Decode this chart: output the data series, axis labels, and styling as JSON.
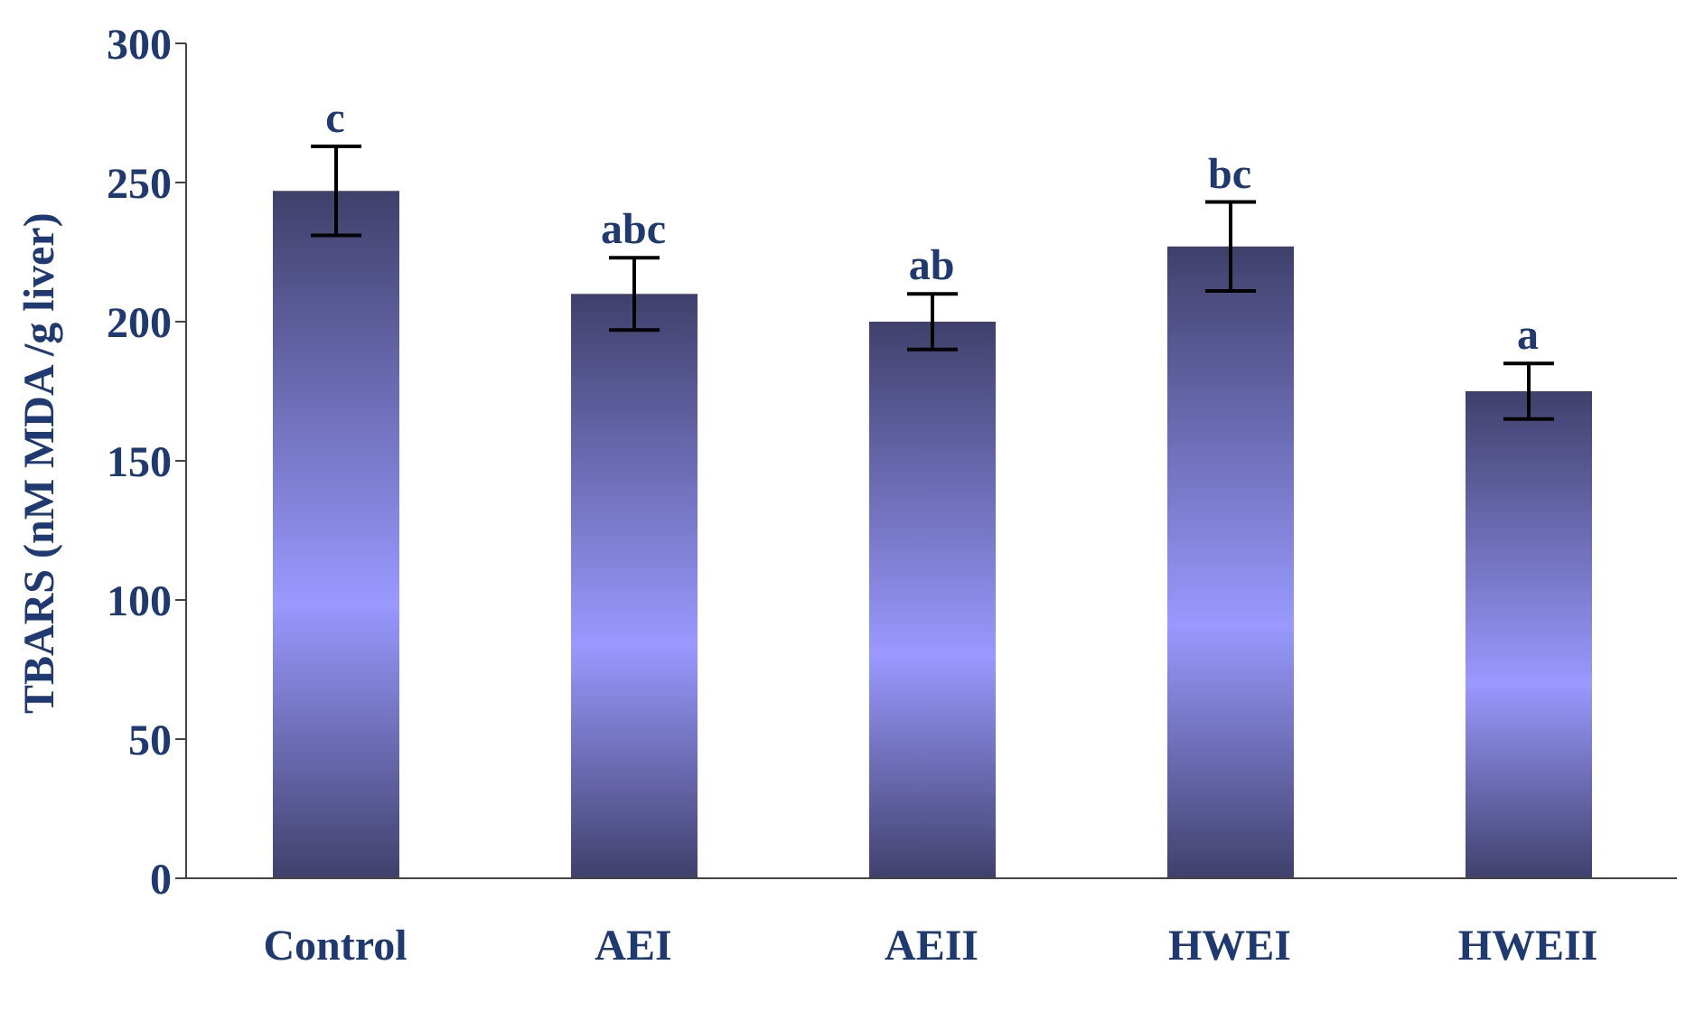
{
  "chart_data": {
    "type": "bar",
    "ylabel": "TBARS (nM MDA /g liver)",
    "categories": [
      "Control",
      "AEI",
      "AEII",
      "HWEI",
      "HWEII"
    ],
    "values": [
      247,
      210,
      200,
      227,
      175
    ],
    "errors": [
      16,
      13,
      10,
      16,
      10
    ],
    "color": "#9999ff",
    "ylim": [
      0,
      300
    ],
    "yticks": [
      0,
      50,
      100,
      150,
      200,
      250,
      300
    ],
    "grid": false,
    "legend": false,
    "annotations": [
      {
        "text": "c",
        "x": "Control",
        "y": 247
      },
      {
        "text": "abc",
        "x": "AEI",
        "y": 210
      },
      {
        "text": "ab",
        "x": "AEII",
        "y": 200
      },
      {
        "text": "bc",
        "x": "HWEI",
        "y": 227
      },
      {
        "text": "a",
        "x": "HWEII",
        "y": 175
      }
    ]
  }
}
